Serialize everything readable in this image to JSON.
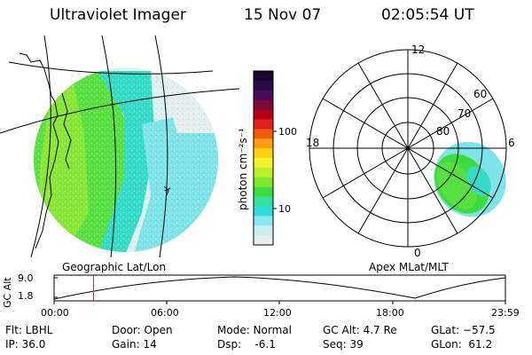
{
  "header": {
    "instrument": "Ultraviolet Imager",
    "date": "15 Nov 07",
    "time": "02:05:54 UT"
  },
  "geo_panel": {
    "label": "Geographic Lat/Lon"
  },
  "colorbar": {
    "unit_label": "photon cm⁻²s⁻¹",
    "ticks": [
      "100",
      "10"
    ],
    "colors": [
      "#1a0630",
      "#2a0a4a",
      "#4a0a5a",
      "#7a0a3a",
      "#b0001a",
      "#e02020",
      "#f05a10",
      "#ff9c10",
      "#ffcf10",
      "#f2f22a",
      "#bdf02a",
      "#7ee62a",
      "#3cdc3c",
      "#30e0a0",
      "#30dcd8",
      "#8ae8ee",
      "#cdeff0",
      "#e6eeee"
    ]
  },
  "polar_panel": {
    "label": "Apex MLat/MLT",
    "mlt_labels": {
      "top": "12",
      "left": "18",
      "right": "6",
      "bottom": "0"
    },
    "lat_labels": [
      "60",
      "70",
      "80"
    ]
  },
  "altitude_plot": {
    "ylabel": "GC Alt",
    "yticks": [
      "9.0",
      "1.8"
    ],
    "xticks": [
      "00:00",
      "06:00",
      "12:00",
      "18:00",
      "23:59"
    ],
    "current_time_fraction": 0.0874
  },
  "info": {
    "filter": "Flt: LBHL",
    "ip": "IP: 36.0",
    "door": "Door: Open",
    "gain": "Gain: 14",
    "mode": "Mode: Normal",
    "dsp": "Dsp:    -6.1",
    "gc_alt": "GC Alt: 4.7 Re",
    "seq": "Seq: 39",
    "glat": "GLat: −57.5",
    "glon": "GLon:  61.2"
  }
}
